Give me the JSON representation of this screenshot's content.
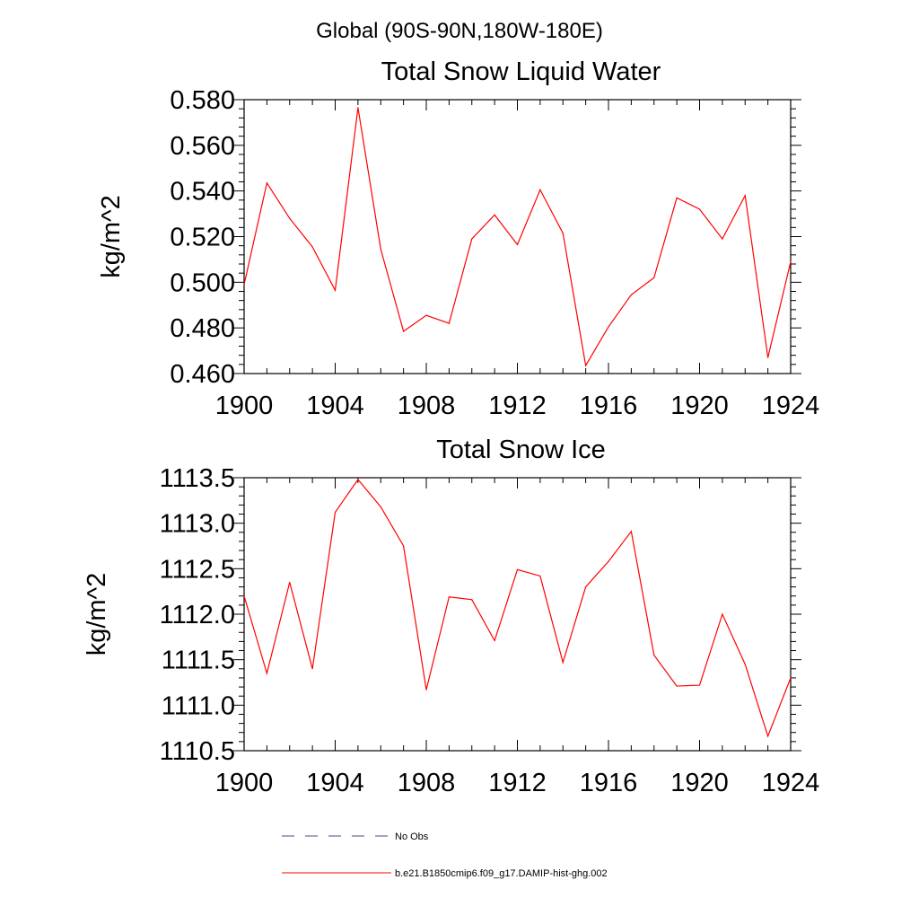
{
  "figure": {
    "suptitle": "Global (90S-90N,180W-180E)",
    "legend": [
      {
        "label": "No Obs",
        "color": "#4a4a8a",
        "style": "dashed"
      },
      {
        "label": "b.e21.B1850cmip6.f09_g17.DAMIP-hist-ghg.002",
        "color": "#ff0000",
        "style": "solid"
      }
    ]
  },
  "chart_data": [
    {
      "type": "line",
      "title": "Total Snow Liquid Water",
      "xlabel": "",
      "ylabel": "kg/m^2",
      "xlim": [
        1900,
        1924
      ],
      "ylim": [
        0.46,
        0.58
      ],
      "xticks": [
        1900,
        1904,
        1908,
        1912,
        1916,
        1920,
        1924
      ],
      "xtick_labels": [
        "1900",
        "1904",
        "1908",
        "1912",
        "1916",
        "1920",
        "1924"
      ],
      "yticks": [
        0.46,
        0.48,
        0.5,
        0.52,
        0.54,
        0.56,
        0.58
      ],
      "ytick_labels": [
        "0.460",
        "0.480",
        "0.500",
        "0.520",
        "0.540",
        "0.560",
        "0.580"
      ],
      "grid": false,
      "series": [
        {
          "name": "b.e21.B1850cmip6.f09_g17.DAMIP-hist-ghg.002",
          "color": "#ff0000",
          "x": [
            1900,
            1901,
            1902,
            1903,
            1904,
            1905,
            1906,
            1907,
            1908,
            1909,
            1910,
            1911,
            1912,
            1913,
            1914,
            1915,
            1916,
            1917,
            1918,
            1919,
            1920,
            1921,
            1922,
            1923,
            1924
          ],
          "y": [
            0.499,
            0.5435,
            0.528,
            0.5155,
            0.4965,
            0.5765,
            0.5145,
            0.4785,
            0.4855,
            0.482,
            0.519,
            0.5295,
            0.5165,
            0.5405,
            0.5215,
            0.4635,
            0.4805,
            0.4945,
            0.502,
            0.537,
            0.532,
            0.519,
            0.538,
            0.467,
            0.509
          ]
        }
      ]
    },
    {
      "type": "line",
      "title": "Total Snow Ice",
      "xlabel": "",
      "ylabel": "kg/m^2",
      "xlim": [
        1900,
        1924
      ],
      "ylim": [
        1110.5,
        1113.5
      ],
      "xticks": [
        1900,
        1904,
        1908,
        1912,
        1916,
        1920,
        1924
      ],
      "xtick_labels": [
        "1900",
        "1904",
        "1908",
        "1912",
        "1916",
        "1920",
        "1924"
      ],
      "yticks": [
        1110.5,
        1111.0,
        1111.5,
        1112.0,
        1112.5,
        1113.0,
        1113.5
      ],
      "ytick_labels": [
        "1110.5",
        "1111.0",
        "1111.5",
        "1112.0",
        "1112.5",
        "1113.0",
        "1113.5"
      ],
      "grid": false,
      "series": [
        {
          "name": "b.e21.B1850cmip6.f09_g17.DAMIP-hist-ghg.002",
          "color": "#ff0000",
          "x": [
            1900,
            1901,
            1902,
            1903,
            1904,
            1905,
            1906,
            1907,
            1908,
            1909,
            1910,
            1911,
            1912,
            1913,
            1914,
            1915,
            1916,
            1917,
            1918,
            1919,
            1920,
            1921,
            1922,
            1923,
            1924
          ],
          "y": [
            1112.2,
            1111.35,
            1112.35,
            1111.4,
            1113.12,
            1113.48,
            1113.18,
            1112.75,
            1111.17,
            1112.19,
            1112.16,
            1111.71,
            1112.49,
            1112.42,
            1111.47,
            1112.3,
            1112.58,
            1112.91,
            1111.55,
            1111.21,
            1111.22,
            1112.0,
            1111.45,
            1110.66,
            1111.3
          ]
        }
      ]
    }
  ]
}
